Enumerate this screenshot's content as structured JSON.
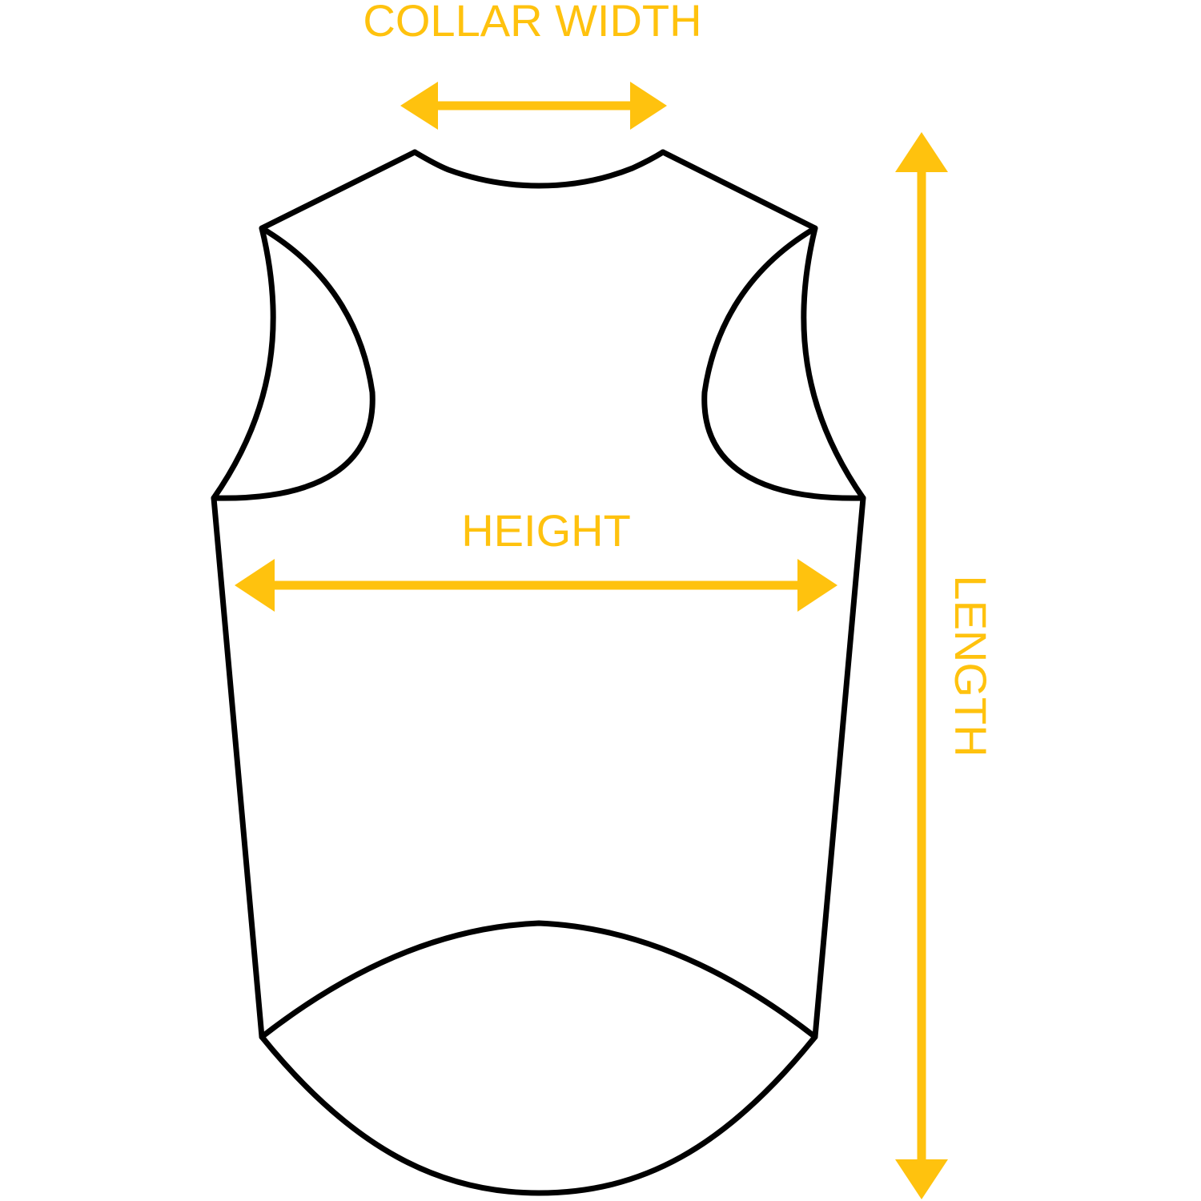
{
  "labels": {
    "collar_width": "COLLAR WIDTH",
    "height": "HEIGHT",
    "length": "LENGTH"
  },
  "colors": {
    "accent": "#FFC20E",
    "outline": "#000000"
  }
}
